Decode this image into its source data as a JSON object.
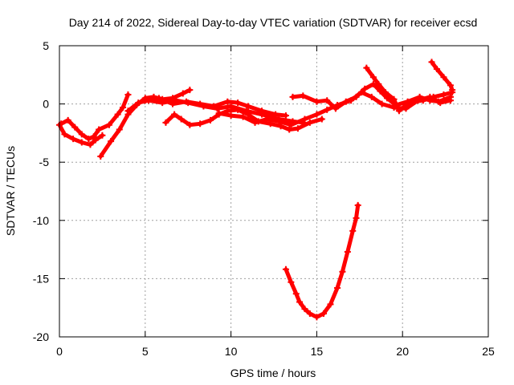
{
  "chart_data": {
    "type": "line",
    "title": "Day 214 of 2022, Sidereal Day-to-day VTEC variation (SDTVAR) for receiver ecsd",
    "xlabel": "GPS time / hours",
    "ylabel": "SDTVAR / TECUs",
    "xlim": [
      0,
      25
    ],
    "ylim": [
      -20,
      5
    ],
    "xticks": [
      0,
      5,
      10,
      15,
      20,
      25
    ],
    "yticks": [
      -20,
      -15,
      -10,
      -5,
      0,
      5
    ],
    "xtick_labels": [
      "0",
      "5",
      "10",
      "15",
      "20",
      "25"
    ],
    "ytick_labels": [
      "-20",
      "-15",
      "-10",
      "-5",
      "0",
      "5"
    ],
    "grid": true,
    "legend": "none",
    "color": "#ff0000",
    "series": [
      {
        "name": "track-1",
        "points": [
          [
            0.0,
            -1.8
          ],
          [
            0.3,
            -2.6
          ],
          [
            0.8,
            -3.0
          ],
          [
            1.3,
            -3.3
          ],
          [
            1.8,
            -3.5
          ],
          [
            2.1,
            -3.1
          ],
          [
            2.5,
            -2.7
          ]
        ]
      },
      {
        "name": "track-2",
        "points": [
          [
            0.1,
            -1.7
          ],
          [
            0.5,
            -1.4
          ],
          [
            0.9,
            -2.0
          ],
          [
            1.3,
            -2.6
          ],
          [
            1.7,
            -3.0
          ],
          [
            2.0,
            -2.8
          ],
          [
            2.3,
            -2.2
          ],
          [
            2.9,
            -1.8
          ],
          [
            3.4,
            -0.9
          ],
          [
            3.7,
            -0.3
          ],
          [
            4.0,
            0.8
          ]
        ]
      },
      {
        "name": "track-3",
        "points": [
          [
            2.4,
            -4.5
          ],
          [
            3.0,
            -3.2
          ],
          [
            3.5,
            -2.2
          ],
          [
            4.0,
            -0.9
          ],
          [
            4.5,
            -0.1
          ],
          [
            5.0,
            0.5
          ],
          [
            5.5,
            0.6
          ],
          [
            6.0,
            0.4
          ],
          [
            6.6,
            0.5
          ],
          [
            7.2,
            0.9
          ],
          [
            7.6,
            1.2
          ]
        ]
      },
      {
        "name": "track-4",
        "points": [
          [
            4.0,
            -0.6
          ],
          [
            4.6,
            0.1
          ],
          [
            5.2,
            0.3
          ],
          [
            6.0,
            0.1
          ],
          [
            6.8,
            0.3
          ],
          [
            7.5,
            0.1
          ],
          [
            8.4,
            -0.2
          ],
          [
            9.2,
            -0.4
          ],
          [
            10.0,
            -0.2
          ],
          [
            10.9,
            -0.6
          ],
          [
            11.8,
            -0.9
          ],
          [
            12.8,
            -1.3
          ],
          [
            13.6,
            -1.5
          ],
          [
            14.2,
            -1.6
          ]
        ]
      },
      {
        "name": "track-5",
        "points": [
          [
            5.0,
            0.3
          ],
          [
            5.8,
            0.5
          ],
          [
            6.6,
            0.0
          ],
          [
            7.4,
            0.2
          ],
          [
            8.2,
            0.0
          ],
          [
            9.0,
            -0.2
          ],
          [
            9.8,
            0.2
          ],
          [
            10.4,
            0.1
          ],
          [
            11.0,
            -0.2
          ],
          [
            11.8,
            -0.6
          ],
          [
            12.6,
            -0.9
          ],
          [
            13.2,
            -1.0
          ]
        ]
      },
      {
        "name": "track-6",
        "points": [
          [
            6.2,
            -1.6
          ],
          [
            6.7,
            -0.9
          ],
          [
            7.1,
            -1.3
          ],
          [
            7.6,
            -1.8
          ],
          [
            8.2,
            -1.7
          ],
          [
            8.8,
            -1.4
          ],
          [
            9.3,
            -0.9
          ],
          [
            9.8,
            -0.6
          ],
          [
            10.4,
            -0.5
          ],
          [
            11.0,
            -0.9
          ],
          [
            11.6,
            -1.5
          ],
          [
            12.3,
            -1.7
          ],
          [
            12.9,
            -1.9
          ],
          [
            13.4,
            -2.2
          ],
          [
            13.9,
            -2.1
          ],
          [
            14.6,
            -1.6
          ],
          [
            15.3,
            -1.3
          ]
        ]
      },
      {
        "name": "track-7",
        "points": [
          [
            9.3,
            -0.8
          ],
          [
            10.0,
            -1.0
          ],
          [
            10.7,
            -1.1
          ],
          [
            11.4,
            -1.6
          ],
          [
            12.1,
            -1.3
          ],
          [
            12.8,
            -1.5
          ],
          [
            13.5,
            -1.8
          ],
          [
            14.3,
            -1.3
          ],
          [
            15.0,
            -0.9
          ],
          [
            15.6,
            -0.5
          ],
          [
            16.2,
            -0.1
          ],
          [
            17.0,
            0.3
          ],
          [
            17.6,
            1.0
          ],
          [
            18.2,
            0.6
          ],
          [
            18.8,
            0.0
          ],
          [
            19.5,
            -0.3
          ],
          [
            20.2,
            -0.4
          ],
          [
            20.9,
            0.3
          ],
          [
            21.6,
            0.6
          ],
          [
            22.2,
            0.1
          ],
          [
            22.8,
            0.3
          ]
        ]
      },
      {
        "name": "track-8",
        "points": [
          [
            13.6,
            0.6
          ],
          [
            14.2,
            0.7
          ],
          [
            15.0,
            0.2
          ],
          [
            15.6,
            0.3
          ],
          [
            16.1,
            -0.4
          ],
          [
            16.7,
            0.2
          ],
          [
            17.3,
            0.6
          ],
          [
            17.8,
            1.3
          ],
          [
            18.3,
            1.7
          ],
          [
            18.7,
            1.1
          ],
          [
            19.1,
            0.5
          ],
          [
            19.6,
            -0.1
          ],
          [
            20.3,
            0.2
          ],
          [
            21.0,
            0.6
          ],
          [
            21.6,
            0.3
          ],
          [
            22.1,
            0.2
          ],
          [
            22.8,
            0.6
          ]
        ]
      },
      {
        "name": "track-9",
        "points": [
          [
            17.9,
            3.1
          ],
          [
            18.3,
            2.3
          ],
          [
            18.6,
            1.7
          ],
          [
            19.0,
            1.0
          ],
          [
            19.5,
            0.4
          ],
          [
            19.8,
            -0.6
          ],
          [
            20.2,
            -0.1
          ],
          [
            20.7,
            0.2
          ],
          [
            21.2,
            0.3
          ],
          [
            21.8,
            0.6
          ],
          [
            22.4,
            0.8
          ],
          [
            22.9,
            1.0
          ]
        ]
      },
      {
        "name": "track-10",
        "points": [
          [
            21.7,
            3.6
          ],
          [
            22.0,
            3.0
          ],
          [
            22.4,
            2.3
          ],
          [
            22.8,
            1.6
          ],
          [
            22.9,
            1.2
          ]
        ]
      },
      {
        "name": "track-11",
        "points": [
          [
            13.2,
            -14.2
          ],
          [
            13.5,
            -15.3
          ],
          [
            13.8,
            -16.3
          ],
          [
            14.0,
            -17.0
          ],
          [
            14.3,
            -17.6
          ],
          [
            14.6,
            -18.0
          ],
          [
            15.0,
            -18.3
          ],
          [
            15.4,
            -18.0
          ],
          [
            15.8,
            -17.2
          ],
          [
            16.2,
            -15.8
          ],
          [
            16.5,
            -14.4
          ],
          [
            16.8,
            -12.7
          ],
          [
            17.1,
            -10.9
          ],
          [
            17.3,
            -9.8
          ],
          [
            17.4,
            -8.7
          ]
        ]
      }
    ]
  }
}
